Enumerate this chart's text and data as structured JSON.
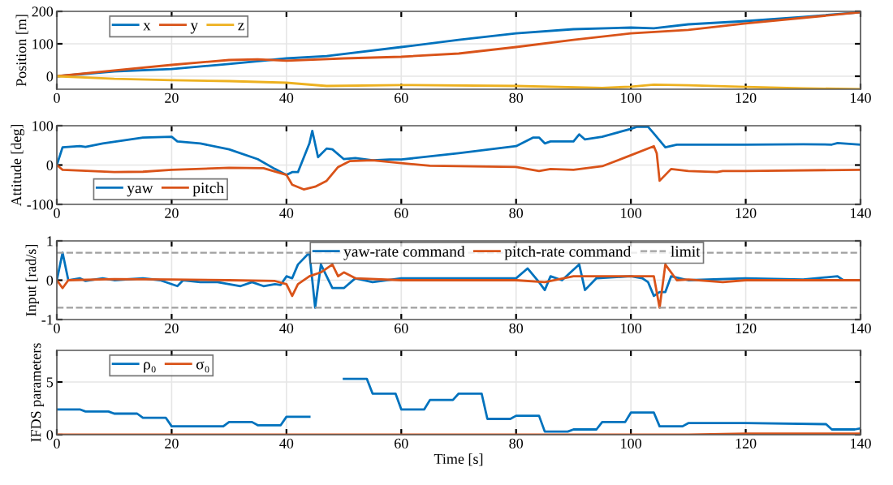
{
  "chart_data": [
    {
      "type": "line",
      "ylabel": "Position [m]",
      "xlim": [
        0,
        140
      ],
      "xticks": [
        0,
        20,
        40,
        60,
        80,
        100,
        120,
        140
      ],
      "ylim": [
        -40,
        200
      ],
      "yticks": [
        0,
        100,
        200
      ],
      "grid": true,
      "legend": "top left",
      "series": [
        {
          "name": "x",
          "color": "#0072bd",
          "x": [
            0,
            10,
            20,
            30,
            40,
            47,
            60,
            70,
            80,
            90,
            100,
            104,
            110,
            120,
            130,
            140
          ],
          "values": [
            0,
            15,
            22,
            38,
            55,
            62,
            90,
            112,
            132,
            145,
            150,
            148,
            160,
            170,
            183,
            197
          ]
        },
        {
          "name": "y",
          "color": "#d95319",
          "x": [
            0,
            10,
            20,
            30,
            35,
            40,
            50,
            60,
            70,
            80,
            90,
            100,
            110,
            120,
            130,
            140
          ],
          "values": [
            0,
            18,
            35,
            50,
            52,
            48,
            55,
            60,
            70,
            90,
            112,
            132,
            143,
            163,
            180,
            197
          ]
        },
        {
          "name": "z",
          "color": "#edb120",
          "x": [
            0,
            10,
            20,
            30,
            40,
            47,
            60,
            80,
            95,
            100,
            104,
            110,
            120,
            130,
            140
          ],
          "values": [
            0,
            -8,
            -12,
            -15,
            -20,
            -30,
            -27,
            -30,
            -36,
            -32,
            -26,
            -28,
            -33,
            -37,
            -40
          ]
        }
      ]
    },
    {
      "type": "line",
      "ylabel": "Attitude [deg]",
      "xlim": [
        0,
        140
      ],
      "xticks": [
        0,
        20,
        40,
        60,
        80,
        100,
        120,
        140
      ],
      "ylim": [
        -100,
        100
      ],
      "yticks": [
        -100,
        0,
        100
      ],
      "grid": true,
      "legend": "bottom left",
      "series": [
        {
          "name": "yaw",
          "color": "#0072bd",
          "x": [
            0,
            1,
            4,
            5,
            8,
            15,
            20,
            21,
            25,
            30,
            35,
            38,
            40,
            41,
            42,
            44,
            44.5,
            45.5,
            47,
            48,
            50,
            52,
            55,
            58,
            60,
            70,
            80,
            83,
            84,
            85,
            86,
            90,
            91,
            92,
            95,
            100,
            101,
            103,
            104,
            106,
            108,
            110,
            120,
            130,
            135,
            136,
            140
          ],
          "values": [
            0,
            45,
            48,
            46,
            55,
            70,
            72,
            60,
            55,
            40,
            15,
            -10,
            -25,
            -18,
            -18,
            55,
            87,
            20,
            42,
            40,
            15,
            18,
            12,
            14,
            14,
            30,
            48,
            70,
            70,
            55,
            60,
            60,
            78,
            65,
            72,
            92,
            97,
            97,
            80,
            45,
            52,
            52,
            52,
            53,
            52,
            56,
            52
          ]
        },
        {
          "name": "pitch",
          "color": "#d95319",
          "x": [
            0,
            1,
            10,
            15,
            20,
            30,
            36,
            40,
            41,
            43,
            45,
            47,
            49,
            51,
            55,
            60,
            65,
            80,
            84,
            86,
            90,
            95,
            100,
            104,
            104.5,
            105,
            107,
            110,
            115,
            116,
            120,
            140
          ],
          "values": [
            0,
            -12,
            -18,
            -17,
            -12,
            -7,
            -8,
            -25,
            -50,
            -62,
            -55,
            -40,
            -5,
            10,
            12,
            5,
            -2,
            -5,
            -15,
            -10,
            -12,
            -3,
            25,
            48,
            30,
            -40,
            -10,
            -15,
            -18,
            -15,
            -15,
            -12
          ]
        }
      ]
    },
    {
      "type": "line",
      "ylabel": "Input [rad/s]",
      "xlim": [
        0,
        140
      ],
      "xticks": [
        0,
        20,
        40,
        60,
        80,
        100,
        120,
        140
      ],
      "ylim": [
        -1,
        1
      ],
      "yticks": [
        -1,
        0,
        1
      ],
      "grid": true,
      "legend": "top",
      "ref_lines": [
        {
          "axis": "y",
          "value": 0.7,
          "label": "limit",
          "color": "#a0a0a0",
          "line_style": "dashed"
        },
        {
          "axis": "y",
          "value": -0.7,
          "label": null,
          "color": "#a0a0a0",
          "line_style": "dashed"
        }
      ],
      "series": [
        {
          "name": "yaw-rate command",
          "color": "#0072bd",
          "x": [
            0,
            1,
            2,
            4,
            5,
            8,
            10,
            15,
            18,
            21,
            22,
            25,
            28,
            30,
            32,
            34,
            36,
            38,
            39,
            40,
            41,
            42,
            44,
            45,
            46,
            48,
            50,
            52,
            55,
            60,
            70,
            80,
            82,
            84,
            85,
            86,
            88,
            91,
            92,
            94,
            100,
            102,
            103,
            104,
            105,
            106,
            107,
            110,
            120,
            130,
            136,
            137,
            140
          ],
          "values": [
            0,
            0.7,
            0,
            0.05,
            -0.02,
            0.05,
            0,
            0.05,
            0,
            -0.15,
            0,
            -0.05,
            -0.05,
            -0.1,
            -0.15,
            -0.05,
            -0.15,
            -0.1,
            -0.12,
            0.1,
            0.05,
            0.4,
            0.7,
            -0.7,
            0.4,
            -0.2,
            -0.2,
            0.05,
            -0.05,
            0.05,
            0.05,
            0.05,
            0.3,
            -0.05,
            -0.25,
            0.1,
            0,
            0.4,
            -0.25,
            0.05,
            0.1,
            0.05,
            -0.05,
            -0.4,
            -0.3,
            -0.3,
            0.1,
            0,
            0.05,
            0.02,
            0.1,
            0,
            0
          ]
        },
        {
          "name": "pitch-rate command",
          "color": "#d95319",
          "x": [
            0,
            1,
            2,
            10,
            20,
            30,
            38,
            40,
            41,
            42,
            44,
            46,
            48,
            49,
            50,
            52,
            60,
            70,
            80,
            85,
            90,
            100,
            104,
            105,
            106,
            108,
            110,
            116,
            120,
            140
          ],
          "values": [
            0,
            -0.2,
            0,
            0.03,
            0.02,
            0,
            -0.02,
            -0.1,
            -0.4,
            -0.1,
            0.1,
            0.2,
            0.4,
            0.1,
            0.2,
            0.05,
            0,
            0,
            0,
            -0.05,
            0.1,
            0.1,
            0.1,
            -0.7,
            0.4,
            0,
            0.02,
            -0.05,
            0,
            0
          ]
        }
      ]
    },
    {
      "type": "line",
      "xlabel": "Time [s]",
      "ylabel": "IFDS parameters",
      "xlim": [
        0,
        140
      ],
      "xticks": [
        0,
        20,
        40,
        60,
        80,
        100,
        120,
        140
      ],
      "ylim": [
        0,
        8
      ],
      "yticks": [
        0,
        5
      ],
      "grid": true,
      "legend": "top left",
      "series": [
        {
          "name": "ρ₀",
          "color": "#0072bd",
          "x": [
            0,
            4,
            5,
            9,
            10,
            14,
            15,
            19,
            20,
            29,
            30,
            34,
            35,
            39,
            40,
            44,
            45,
            49,
            50,
            54,
            55,
            59,
            60,
            64,
            65,
            69,
            70,
            74,
            75,
            79,
            80,
            84,
            85,
            89,
            90,
            94,
            95,
            99,
            100,
            104,
            105,
            109,
            110,
            120,
            134,
            135,
            139,
            140
          ],
          "values": [
            2.4,
            2.4,
            2.2,
            2.2,
            2.0,
            2.0,
            1.6,
            1.6,
            0.8,
            0.8,
            1.2,
            1.2,
            0.9,
            0.9,
            1.7,
            1.7,
            null,
            null,
            5.3,
            5.3,
            3.9,
            3.9,
            2.4,
            2.4,
            3.3,
            3.3,
            3.9,
            3.9,
            1.5,
            1.5,
            1.8,
            1.8,
            0.3,
            0.3,
            0.5,
            0.5,
            1.2,
            1.2,
            2.1,
            2.1,
            0.8,
            0.8,
            1.1,
            1.1,
            1.0,
            0.5,
            0.5,
            0.6
          ]
        },
        {
          "name": "σ₀",
          "color": "#d95319",
          "x": [
            0,
            40,
            50,
            110,
            120,
            140
          ],
          "values": [
            0,
            0,
            0,
            0,
            0.1,
            0.1
          ]
        }
      ]
    }
  ]
}
